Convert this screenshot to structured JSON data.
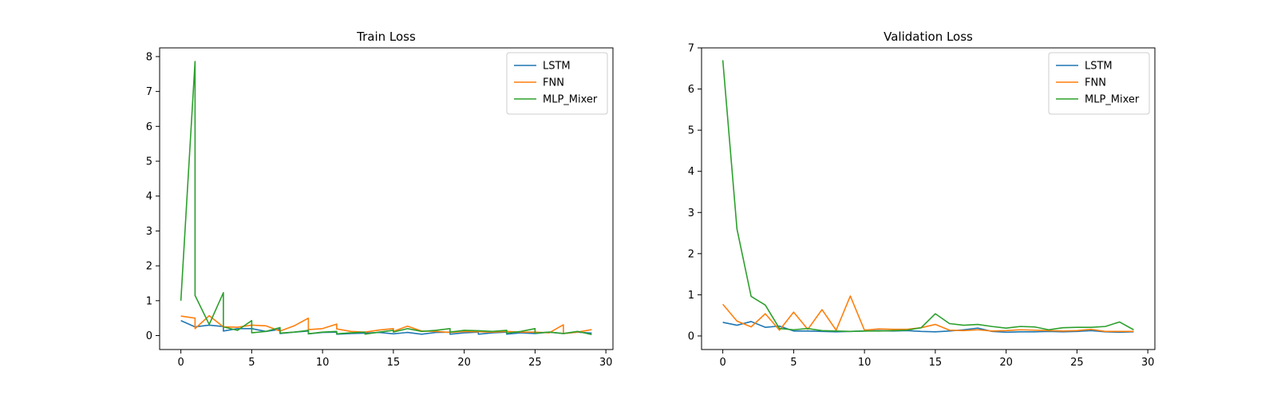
{
  "chart_data": [
    {
      "type": "line",
      "title": "Train Loss",
      "xlabel": "",
      "ylabel": "",
      "xlim": [
        -1.5,
        30.5
      ],
      "ylim": [
        -0.4,
        8.25
      ],
      "xticks": [
        0,
        5,
        10,
        15,
        20,
        25,
        30
      ],
      "yticks": [
        0,
        1,
        2,
        3,
        4,
        5,
        6,
        7,
        8
      ],
      "grid": false,
      "legend_position": "top-right",
      "x": [
        0,
        1,
        1,
        2,
        3,
        3,
        4,
        5,
        5,
        6,
        7,
        7,
        8,
        9,
        9,
        10,
        11,
        11,
        12,
        13,
        13,
        14,
        15,
        15,
        16,
        17,
        17,
        18,
        19,
        19,
        20,
        21,
        21,
        22,
        23,
        23,
        24,
        25,
        25,
        26,
        27,
        27,
        28,
        29
      ],
      "series": [
        {
          "name": "LSTM",
          "color": "#1f77b4",
          "x": [
            0,
            1,
            2,
            3,
            3,
            4,
            5,
            6,
            7,
            7,
            8,
            9,
            9,
            10,
            11,
            11,
            12,
            13,
            14,
            15,
            16,
            17,
            18,
            19,
            19,
            20,
            21,
            21,
            22,
            23,
            23,
            24,
            25,
            26,
            27,
            28,
            29
          ],
          "y": [
            0.43,
            0.25,
            0.3,
            0.26,
            0.13,
            0.2,
            0.2,
            0.12,
            0.18,
            0.06,
            0.1,
            0.13,
            0.05,
            0.09,
            0.1,
            0.04,
            0.06,
            0.07,
            0.09,
            0.05,
            0.09,
            0.04,
            0.09,
            0.1,
            0.04,
            0.08,
            0.1,
            0.04,
            0.08,
            0.1,
            0.04,
            0.08,
            0.06,
            0.1,
            0.06,
            0.1,
            0.07
          ]
        },
        {
          "name": "FNN",
          "color": "#ff7f0e",
          "x": [
            0,
            1,
            1,
            2,
            3,
            4,
            5,
            6,
            7,
            8,
            9,
            9,
            10,
            11,
            11,
            12,
            13,
            14,
            15,
            15,
            16,
            17,
            18,
            19,
            20,
            21,
            22,
            23,
            24,
            25,
            26,
            27,
            27,
            28,
            29
          ],
          "y": [
            0.56,
            0.5,
            0.2,
            0.57,
            0.25,
            0.24,
            0.3,
            0.28,
            0.13,
            0.28,
            0.5,
            0.17,
            0.2,
            0.33,
            0.19,
            0.12,
            0.1,
            0.16,
            0.2,
            0.12,
            0.27,
            0.13,
            0.12,
            0.09,
            0.12,
            0.11,
            0.1,
            0.12,
            0.1,
            0.1,
            0.08,
            0.31,
            0.06,
            0.1,
            0.17
          ]
        },
        {
          "name": "MLP_Mixer",
          "color": "#2ca02c",
          "x": [
            0,
            1,
            1,
            2,
            3,
            3,
            4,
            5,
            5,
            6,
            7,
            7,
            8,
            9,
            9,
            10,
            11,
            11,
            12,
            13,
            13,
            14,
            15,
            15,
            16,
            17,
            18,
            19,
            19,
            20,
            21,
            22,
            23,
            23,
            24,
            25,
            25,
            26,
            27,
            28,
            29
          ],
          "y": [
            1.0,
            7.86,
            1.15,
            0.32,
            1.23,
            0.25,
            0.15,
            0.43,
            0.08,
            0.12,
            0.23,
            0.07,
            0.1,
            0.15,
            0.05,
            0.1,
            0.12,
            0.05,
            0.08,
            0.1,
            0.04,
            0.1,
            0.15,
            0.1,
            0.2,
            0.12,
            0.15,
            0.2,
            0.1,
            0.15,
            0.14,
            0.12,
            0.15,
            0.07,
            0.12,
            0.2,
            0.07,
            0.1,
            0.06,
            0.12,
            0.03
          ]
        }
      ]
    },
    {
      "type": "line",
      "title": "Validation Loss",
      "xlabel": "",
      "ylabel": "",
      "xlim": [
        -1.5,
        30.5
      ],
      "ylim": [
        -0.33,
        7.0
      ],
      "xticks": [
        0,
        5,
        10,
        15,
        20,
        25,
        30
      ],
      "yticks": [
        0,
        1,
        2,
        3,
        4,
        5,
        6,
        7
      ],
      "grid": false,
      "legend_position": "top-right",
      "x": [
        0,
        1,
        2,
        3,
        4,
        5,
        6,
        7,
        8,
        9,
        10,
        11,
        12,
        13,
        14,
        15,
        16,
        17,
        18,
        19,
        20,
        21,
        22,
        23,
        24,
        25,
        26,
        27,
        28,
        29
      ],
      "series": [
        {
          "name": "LSTM",
          "color": "#1f77b4",
          "y": [
            0.33,
            0.26,
            0.35,
            0.21,
            0.24,
            0.12,
            0.12,
            0.11,
            0.1,
            0.11,
            0.12,
            0.13,
            0.12,
            0.13,
            0.11,
            0.1,
            0.12,
            0.15,
            0.19,
            0.11,
            0.09,
            0.1,
            0.1,
            0.11,
            0.1,
            0.11,
            0.13,
            0.1,
            0.09,
            0.1
          ]
        },
        {
          "name": "FNN",
          "color": "#ff7f0e",
          "y": [
            0.77,
            0.36,
            0.22,
            0.54,
            0.14,
            0.58,
            0.16,
            0.64,
            0.14,
            0.97,
            0.14,
            0.17,
            0.16,
            0.16,
            0.2,
            0.28,
            0.14,
            0.13,
            0.15,
            0.12,
            0.13,
            0.15,
            0.14,
            0.13,
            0.12,
            0.13,
            0.16,
            0.11,
            0.11,
            0.11
          ]
        },
        {
          "name": "MLP_Mixer",
          "color": "#2ca02c",
          "y": [
            6.7,
            2.6,
            0.96,
            0.75,
            0.18,
            0.15,
            0.18,
            0.13,
            0.12,
            0.11,
            0.12,
            0.12,
            0.13,
            0.14,
            0.2,
            0.54,
            0.3,
            0.26,
            0.28,
            0.23,
            0.19,
            0.23,
            0.22,
            0.15,
            0.2,
            0.21,
            0.21,
            0.23,
            0.34,
            0.15
          ]
        }
      ]
    }
  ]
}
